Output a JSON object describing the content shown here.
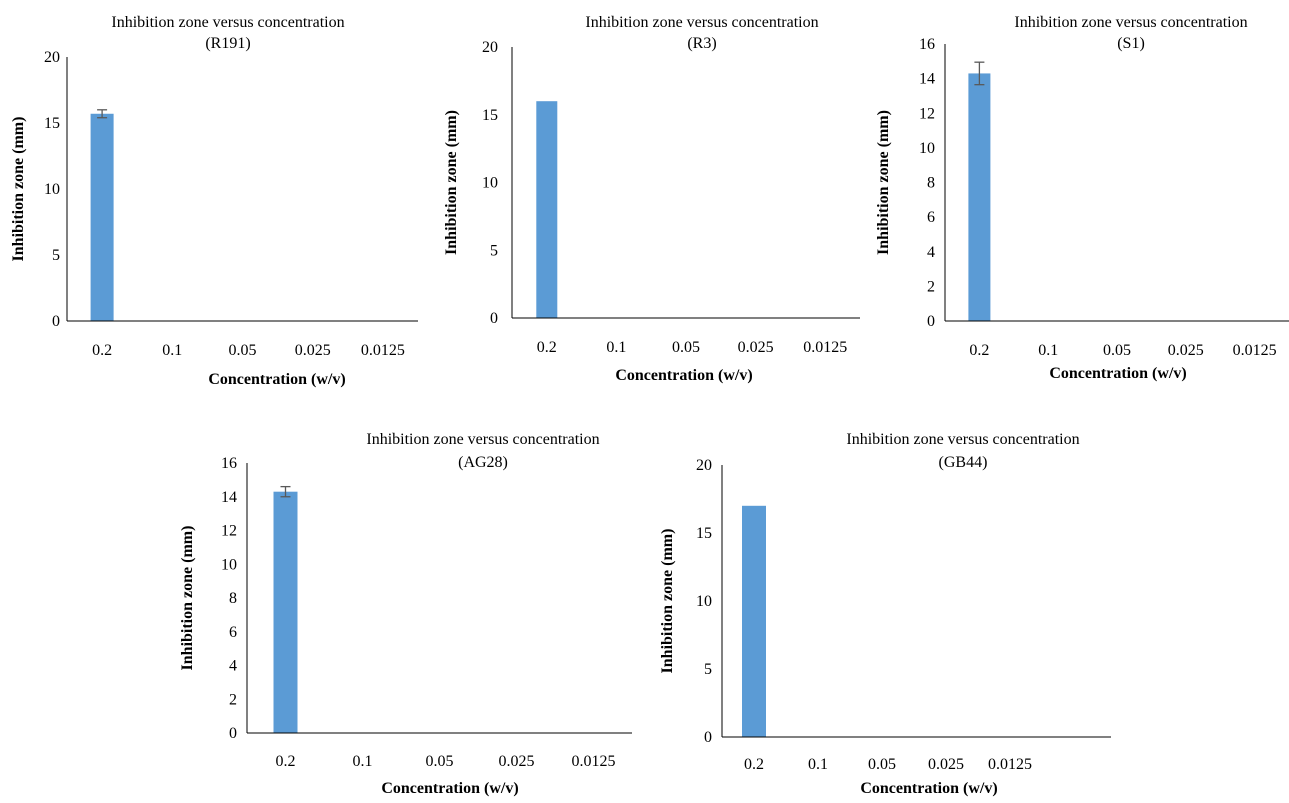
{
  "figure": {
    "charts": [
      {
        "id": "r191",
        "title_line1": "Inhibition zone versus concentration",
        "title_line2": "(R191)"
      },
      {
        "id": "r3",
        "title_line1": "Inhibition zone versus concentration",
        "title_line2": "(R3)"
      },
      {
        "id": "s1",
        "title_line1": "Inhibition zone versus concentration",
        "title_line2": "(S1)"
      },
      {
        "id": "ag28",
        "title_line1": "Inhibition zone versus concentration",
        "title_line2": "(AG28)"
      },
      {
        "id": "gb44",
        "title_line1": "Inhibition zone versus concentration",
        "title_line2": "(GB44)"
      }
    ]
  },
  "chart_data": [
    {
      "type": "bar",
      "title": "Inhibition zone versus concentration (R191)",
      "xlabel": "Concentration (w/v)",
      "ylabel": "Inhibition zone (mm)",
      "categories": [
        "0.2",
        "0.1",
        "0.05",
        "0.025",
        "0.0125"
      ],
      "values": [
        15.7,
        0,
        0,
        0,
        0
      ],
      "errors": [
        0.3,
        0,
        0,
        0,
        0
      ],
      "ylim": [
        0,
        20
      ],
      "yticks": [
        0,
        5,
        10,
        15,
        20
      ],
      "bar_color": "#5b9bd5",
      "grid": false,
      "legend": "none"
    },
    {
      "type": "bar",
      "title": "Inhibition zone versus concentration (R3)",
      "xlabel": "Concentration (w/v)",
      "ylabel": "Inhibition zone (mm)",
      "categories": [
        "0.2",
        "0.1",
        "0.05",
        "0.025",
        "0.0125"
      ],
      "values": [
        16,
        0,
        0,
        0,
        0
      ],
      "errors": [
        0,
        0,
        0,
        0,
        0
      ],
      "ylim": [
        0,
        20
      ],
      "yticks": [
        0,
        5,
        10,
        15,
        20
      ],
      "bar_color": "#5b9bd5",
      "grid": false,
      "legend": "none"
    },
    {
      "type": "bar",
      "title": "Inhibition zone versus concentration (S1)",
      "xlabel": "Concentration (w/v)",
      "ylabel": "Inhibition zone (mm)",
      "categories": [
        "0.2",
        "0.1",
        "0.05",
        "0.025",
        "0.0125"
      ],
      "values": [
        14.3,
        0,
        0,
        0,
        0
      ],
      "errors": [
        0.65,
        0,
        0,
        0,
        0
      ],
      "ylim": [
        0,
        16
      ],
      "yticks": [
        0,
        2,
        4,
        6,
        8,
        10,
        12,
        14,
        16
      ],
      "bar_color": "#5b9bd5",
      "grid": false,
      "legend": "none"
    },
    {
      "type": "bar",
      "title": "Inhibition zone versus concentration (AG28)",
      "xlabel": "Concentration (w/v)",
      "ylabel": "Inhibition zone (mm)",
      "categories": [
        "0.2",
        "0.1",
        "0.05",
        "0.025",
        "0.0125"
      ],
      "values": [
        14.3,
        0,
        0,
        0,
        0
      ],
      "errors": [
        0.3,
        0,
        0,
        0,
        0
      ],
      "ylim": [
        0,
        16
      ],
      "yticks": [
        0,
        2,
        4,
        6,
        8,
        10,
        12,
        14,
        16
      ],
      "bar_color": "#5b9bd5",
      "grid": false,
      "legend": "none"
    },
    {
      "type": "bar",
      "title": "Inhibition zone versus concentration (GB44)",
      "xlabel": "Concentration (w/v)",
      "ylabel": "Inhibition zone (mm)",
      "categories": [
        "0.2",
        "0.1",
        "0.05",
        "0.025",
        "0.0125"
      ],
      "values": [
        17,
        0,
        0,
        0,
        0
      ],
      "errors": [
        0,
        0,
        0,
        0,
        0
      ],
      "ylim": [
        0,
        20
      ],
      "yticks": [
        0,
        5,
        10,
        15,
        20
      ],
      "bar_color": "#5b9bd5",
      "grid": false,
      "legend": "none"
    }
  ]
}
